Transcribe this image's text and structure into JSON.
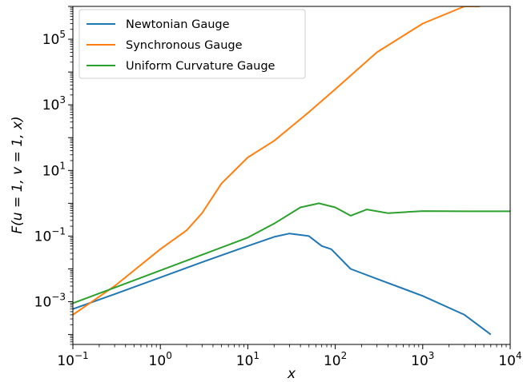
{
  "chart_data": {
    "type": "line",
    "xscale": "log",
    "yscale": "log",
    "xlim": [
      0.1,
      10000
    ],
    "ylim": [
      5e-05,
      1000000
    ],
    "xlabel": "x",
    "ylabel": "F(u = 1, v = 1, x)",
    "xticks": [
      {
        "value": 0.1,
        "base": "10",
        "exp": "−1"
      },
      {
        "value": 1,
        "base": "10",
        "exp": "0"
      },
      {
        "value": 10,
        "base": "10",
        "exp": "1"
      },
      {
        "value": 100,
        "base": "10",
        "exp": "2"
      },
      {
        "value": 1000,
        "base": "10",
        "exp": "3"
      },
      {
        "value": 10000,
        "base": "10",
        "exp": "4"
      }
    ],
    "yticks": [
      {
        "value": 0.001,
        "base": "10",
        "exp": "−3"
      },
      {
        "value": 0.1,
        "base": "10",
        "exp": "−1"
      },
      {
        "value": 10,
        "base": "10",
        "exp": "1"
      },
      {
        "value": 1000,
        "base": "10",
        "exp": "3"
      },
      {
        "value": 100000,
        "base": "10",
        "exp": "5"
      }
    ],
    "legend_position": "upper-left",
    "series": [
      {
        "name": "Newtonian Gauge",
        "color": "#1f77b4",
        "x": [
          0.1,
          0.3,
          1,
          3,
          10,
          20,
          30,
          50,
          70,
          90,
          150,
          300,
          1000,
          3000,
          6000
        ],
        "y": [
          0.0006,
          0.0017,
          0.0055,
          0.016,
          0.05,
          0.095,
          0.12,
          0.1,
          0.05,
          0.04,
          0.01,
          0.005,
          0.0015,
          0.0004,
          0.0001
        ]
      },
      {
        "name": "Synchronous Gauge",
        "color": "#ff7f0e",
        "x": [
          0.1,
          0.3,
          1,
          2,
          3,
          5,
          10,
          20,
          50,
          100,
          300,
          1000,
          3000,
          4500
        ],
        "y": [
          0.0004,
          0.003,
          0.04,
          0.15,
          0.5,
          4,
          25,
          80,
          600,
          3000,
          40000,
          300000,
          1000000,
          1000000
        ]
      },
      {
        "name": "Uniform Curvature Gauge",
        "color": "#2ca02c",
        "x": [
          0.1,
          0.3,
          1,
          3,
          10,
          20,
          40,
          65,
          100,
          150,
          230,
          400,
          1000,
          3000,
          10000
        ],
        "y": [
          0.0009,
          0.0027,
          0.009,
          0.027,
          0.09,
          0.24,
          0.75,
          1.0,
          0.75,
          0.42,
          0.65,
          0.5,
          0.58,
          0.57,
          0.57
        ]
      }
    ]
  }
}
